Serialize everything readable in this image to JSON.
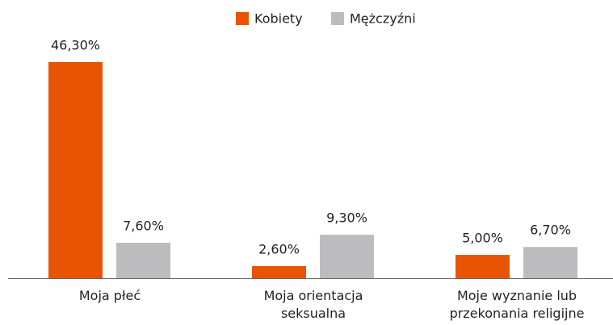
{
  "chart_data": {
    "type": "bar",
    "categories": [
      "Moja płeć",
      "Moja orientacja seksualna",
      "Moje wyznanie lub przekonania religijne"
    ],
    "series": [
      {
        "name": "Kobiety",
        "color": "#e85403",
        "values": [
          46.3,
          2.6,
          5.0
        ],
        "value_labels": [
          "46,30%",
          "2,60%",
          "5,00%"
        ]
      },
      {
        "name": "Mężczyźni",
        "color": "#bcbcbe",
        "values": [
          7.6,
          9.3,
          6.7
        ],
        "value_labels": [
          "7,60%",
          "9,30%",
          "6,70%"
        ]
      }
    ],
    "legend": "top"
  }
}
